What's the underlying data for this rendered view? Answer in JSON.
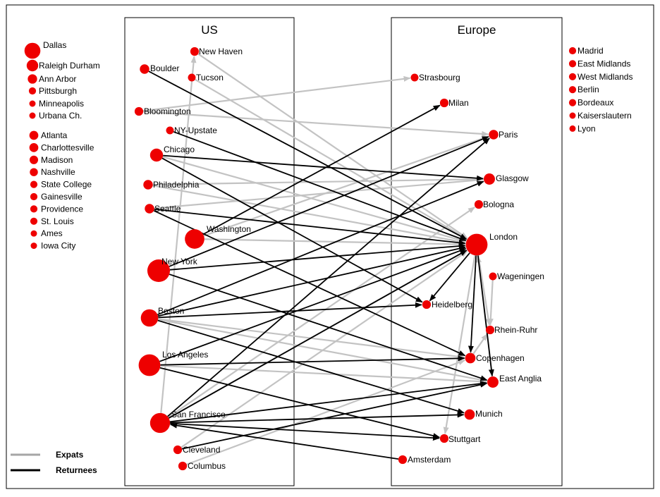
{
  "panels": [
    {
      "title": "US"
    },
    {
      "title": "Europe"
    }
  ],
  "legend": [
    {
      "label": "Expats",
      "color": "#a6a6a6"
    },
    {
      "label": "Returnees",
      "color": "#000000"
    }
  ],
  "colors": {
    "node": "#ee0000",
    "expat": "#c3c3c3",
    "returnee": "#000000",
    "frame": "#000000"
  },
  "left_column": {
    "top_group": [
      {
        "label": "Dallas",
        "size": 3
      },
      {
        "label": "Raleigh Durham",
        "size": 2
      },
      {
        "label": "Ann Arbor",
        "size": 1.5
      },
      {
        "label": "Pittsburgh",
        "size": 1
      },
      {
        "label": "Minneapolis",
        "size": 0.8
      },
      {
        "label": "Urbana Ch.",
        "size": 0.8
      }
    ],
    "bottom_group": [
      {
        "label": "Atlanta",
        "size": 1.4
      },
      {
        "label": "Charlottesville",
        "size": 1.4
      },
      {
        "label": "Madison",
        "size": 1.3
      },
      {
        "label": "Nashville",
        "size": 1.2
      },
      {
        "label": "State College",
        "size": 1
      },
      {
        "label": "Gainesville",
        "size": 1
      },
      {
        "label": "Providence",
        "size": 1
      },
      {
        "label": "St. Louis",
        "size": 1
      },
      {
        "label": "Ames",
        "size": 0.8
      },
      {
        "label": "Iowa City",
        "size": 0.8
      }
    ]
  },
  "right_column": [
    {
      "label": "Madrid",
      "size": 1
    },
    {
      "label": "East Midlands",
      "size": 1
    },
    {
      "label": "West Midlands",
      "size": 1
    },
    {
      "label": "Berlin",
      "size": 1
    },
    {
      "label": "Bordeaux",
      "size": 1
    },
    {
      "label": "Kaiserslautern",
      "size": 0.8
    },
    {
      "label": "Lyon",
      "size": 0.8
    }
  ],
  "us_nodes": [
    {
      "id": "newhaven",
      "label": "New Haven",
      "size": 1
    },
    {
      "id": "boulder",
      "label": "Boulder",
      "size": 1.2
    },
    {
      "id": "tucson",
      "label": "Tucson",
      "size": 0.8
    },
    {
      "id": "bloomington",
      "label": "Bloomington",
      "size": 1
    },
    {
      "id": "nyupstate",
      "label": "NY-Upstate",
      "size": 0.8
    },
    {
      "id": "chicago",
      "label": "Chicago",
      "size": 2
    },
    {
      "id": "philadelphia",
      "label": "Philadelphia",
      "size": 1.2
    },
    {
      "id": "seattle",
      "label": "Seattle",
      "size": 1.2
    },
    {
      "id": "washington",
      "label": "Washington",
      "size": 3.5
    },
    {
      "id": "newyork",
      "label": "New York",
      "size": 4.2
    },
    {
      "id": "boston",
      "label": "Boston",
      "size": 3
    },
    {
      "id": "losangeles",
      "label": "Los Angeles",
      "size": 4
    },
    {
      "id": "sanfrancisco",
      "label": "San Francisco",
      "size": 3.6
    },
    {
      "id": "cleveland",
      "label": "Cleveland",
      "size": 1
    },
    {
      "id": "columbus",
      "label": "Columbus",
      "size": 1
    }
  ],
  "eu_nodes": [
    {
      "id": "strasbourg",
      "label": "Strasbourg",
      "size": 0.8
    },
    {
      "id": "milan",
      "label": "Milan",
      "size": 1
    },
    {
      "id": "paris",
      "label": "Paris",
      "size": 1.2
    },
    {
      "id": "glasgow",
      "label": "Glasgow",
      "size": 1.6
    },
    {
      "id": "bologna",
      "label": "Bologna",
      "size": 1
    },
    {
      "id": "london",
      "label": "London",
      "size": 4
    },
    {
      "id": "wageningen",
      "label": "Wageningen",
      "size": 0.8
    },
    {
      "id": "heidelberg",
      "label": "Heidelberg",
      "size": 1
    },
    {
      "id": "rheinruhr",
      "label": "Rhein-Ruhr",
      "size": 1
    },
    {
      "id": "copenhagen",
      "label": "Copenhagen",
      "size": 1.4
    },
    {
      "id": "eastanglia",
      "label": "East Anglia",
      "size": 1.6
    },
    {
      "id": "munich",
      "label": "Munich",
      "size": 1.4
    },
    {
      "id": "stuttgart",
      "label": "Stuttgart",
      "size": 1
    },
    {
      "id": "amsterdam",
      "label": "Amsterdam",
      "size": 1
    }
  ],
  "edges": [
    {
      "from": "bloomington",
      "to": "strasbourg",
      "type": "expat"
    },
    {
      "from": "bloomington",
      "to": "paris",
      "type": "expat"
    },
    {
      "from": "newhaven",
      "to": "london",
      "type": "expat"
    },
    {
      "from": "tucson",
      "to": "london",
      "type": "expat"
    },
    {
      "from": "boulder",
      "to": "london",
      "type": "returnee"
    },
    {
      "from": "nyupstate",
      "to": "london",
      "type": "returnee"
    },
    {
      "from": "chicago",
      "to": "glasgow",
      "type": "returnee"
    },
    {
      "from": "chicago",
      "to": "london",
      "type": "expat"
    },
    {
      "from": "chicago",
      "to": "heidelberg",
      "type": "returnee"
    },
    {
      "from": "philadelphia",
      "to": "london",
      "type": "expat"
    },
    {
      "from": "philadelphia",
      "to": "glasgow",
      "type": "expat"
    },
    {
      "from": "seattle",
      "to": "london",
      "type": "returnee"
    },
    {
      "from": "seattle",
      "to": "glasgow",
      "type": "expat"
    },
    {
      "from": "seattle",
      "to": "copenhagen",
      "type": "returnee"
    },
    {
      "from": "washington",
      "to": "london",
      "type": "expat"
    },
    {
      "from": "washington",
      "to": "paris",
      "type": "expat"
    },
    {
      "from": "washington",
      "to": "milan",
      "type": "returnee"
    },
    {
      "from": "newyork",
      "to": "london",
      "type": "returnee"
    },
    {
      "from": "newyork",
      "to": "eastanglia",
      "type": "returnee"
    },
    {
      "from": "newyork",
      "to": "paris",
      "type": "returnee"
    },
    {
      "from": "boston",
      "to": "heidelberg",
      "type": "returnee"
    },
    {
      "from": "boston",
      "to": "london",
      "type": "returnee"
    },
    {
      "from": "boston",
      "to": "munich",
      "type": "returnee"
    },
    {
      "from": "boston",
      "to": "copenhagen",
      "type": "expat"
    },
    {
      "from": "boston",
      "to": "eastanglia",
      "type": "expat"
    },
    {
      "from": "boston",
      "to": "glasgow",
      "type": "returnee"
    },
    {
      "from": "losangeles",
      "to": "copenhagen",
      "type": "returnee"
    },
    {
      "from": "losangeles",
      "to": "london",
      "type": "returnee"
    },
    {
      "from": "losangeles",
      "to": "stuttgart",
      "type": "returnee"
    },
    {
      "from": "losangeles",
      "to": "eastanglia",
      "type": "expat"
    },
    {
      "from": "sanfrancisco",
      "to": "munich",
      "type": "returnee"
    },
    {
      "from": "sanfrancisco",
      "to": "london",
      "type": "expat"
    },
    {
      "from": "sanfrancisco",
      "to": "paris",
      "type": "returnee"
    },
    {
      "from": "sanfrancisco",
      "to": "eastanglia",
      "type": "returnee"
    },
    {
      "from": "sanfrancisco",
      "to": "stuttgart",
      "type": "returnee"
    },
    {
      "from": "sanfrancisco",
      "to": "bologna",
      "type": "expat"
    },
    {
      "from": "sanfrancisco",
      "to": "london",
      "type": "returnee"
    },
    {
      "from": "sanfrancisco",
      "to": "newhaven",
      "type": "expat"
    },
    {
      "from": "cleveland",
      "to": "eastanglia",
      "type": "returnee"
    },
    {
      "from": "cleveland",
      "to": "london",
      "type": "expat"
    },
    {
      "from": "columbus",
      "to": "copenhagen",
      "type": "expat"
    },
    {
      "from": "amsterdam",
      "to": "sanfrancisco",
      "type": "returnee"
    },
    {
      "from": "london",
      "to": "heidelberg",
      "type": "returnee"
    },
    {
      "from": "london",
      "to": "copenhagen",
      "type": "returnee"
    },
    {
      "from": "london",
      "to": "eastanglia",
      "type": "returnee"
    },
    {
      "from": "london",
      "to": "rheinruhr",
      "type": "expat"
    },
    {
      "from": "london",
      "to": "stuttgart",
      "type": "expat"
    },
    {
      "from": "wageningen",
      "to": "rheinruhr",
      "type": "expat"
    },
    {
      "from": "copenhagen",
      "to": "rheinruhr",
      "type": "expat"
    },
    {
      "from": "eastanglia",
      "to": "london",
      "type": "expat"
    }
  ]
}
